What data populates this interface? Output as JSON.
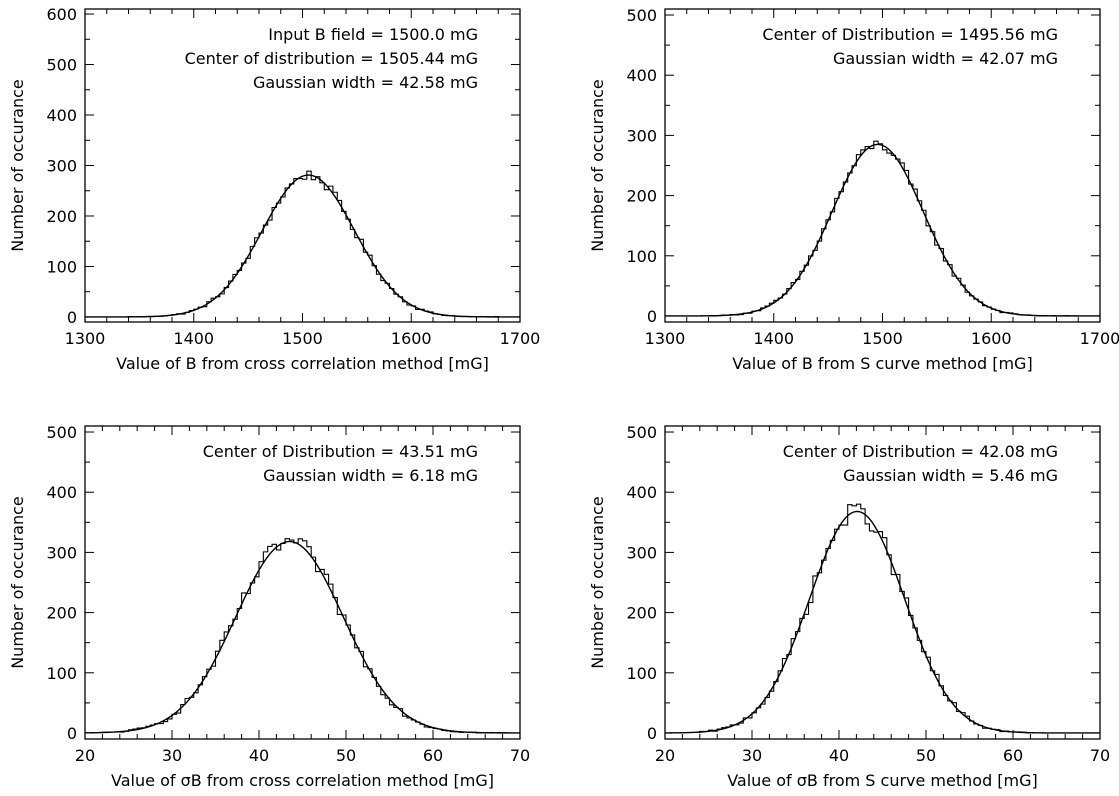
{
  "chart_data": [
    {
      "type": "histogram",
      "xlim": [
        1300,
        1700
      ],
      "ylim": [
        -10,
        610
      ],
      "xticks": [
        "1300",
        "1400",
        "1500",
        "1600",
        "1700"
      ],
      "yticks": [
        "0",
        "100",
        "200",
        "300",
        "400",
        "500",
        "600"
      ],
      "xlabel": "Value of B from cross correlation method [mG]",
      "ylabel": "Number of occurance",
      "annotations": [
        "Input B field = 1500.0 mG",
        "Center of distribution = 1505.44 mG",
        "Gaussian width = 42.58 mG"
      ],
      "fit": {
        "center": 1505.44,
        "width": 42.58,
        "peak": 281
      },
      "bin_width": 4,
      "noise_amplitude": 10,
      "hist_range": [
        1340,
        1680
      ]
    },
    {
      "type": "histogram",
      "xlim": [
        1300,
        1700
      ],
      "ylim": [
        -10,
        510
      ],
      "xticks": [
        "1300",
        "1400",
        "1500",
        "1600",
        "1700"
      ],
      "yticks": [
        "0",
        "100",
        "200",
        "300",
        "400",
        "500"
      ],
      "xlabel": "Value of B from S curve method [mG]",
      "ylabel": "Number of occurance",
      "annotations": [
        "Center of Distribution = 1495.56 mG",
        "Gaussian width = 42.07 mG"
      ],
      "fit": {
        "center": 1495.56,
        "width": 42.07,
        "peak": 285
      },
      "bin_width": 4,
      "noise_amplitude": 9,
      "hist_range": [
        1340,
        1680
      ]
    },
    {
      "type": "histogram",
      "xlim": [
        20,
        70
      ],
      "ylim": [
        -10,
        510
      ],
      "xticks": [
        "20",
        "30",
        "40",
        "50",
        "60",
        "70"
      ],
      "yticks": [
        "0",
        "100",
        "200",
        "300",
        "400",
        "500"
      ],
      "xlabel": "Value of σB from cross correlation method [mG]",
      "ylabel": "Number of occurance",
      "annotations": [
        "Center of Distribution = 43.51 mG",
        "Gaussian width = 6.18 mG"
      ],
      "fit": {
        "center": 43.51,
        "width": 6.18,
        "peak": 318
      },
      "bin_width": 0.5,
      "noise_amplitude": 14,
      "hist_range": [
        22,
        69
      ]
    },
    {
      "type": "histogram",
      "xlim": [
        20,
        70
      ],
      "ylim": [
        -10,
        510
      ],
      "xticks": [
        "20",
        "30",
        "40",
        "50",
        "60",
        "70"
      ],
      "yticks": [
        "0",
        "100",
        "200",
        "300",
        "400",
        "500"
      ],
      "xlabel": "Value of σB from S curve method [mG]",
      "ylabel": "Number of occurance",
      "annotations": [
        "Center of Distribution = 42.08 mG",
        "Gaussian width = 5.46 mG"
      ],
      "fit": {
        "center": 42.08,
        "width": 5.46,
        "peak": 368
      },
      "bin_width": 0.5,
      "noise_amplitude": 16,
      "hist_range": [
        24,
        62
      ]
    }
  ]
}
